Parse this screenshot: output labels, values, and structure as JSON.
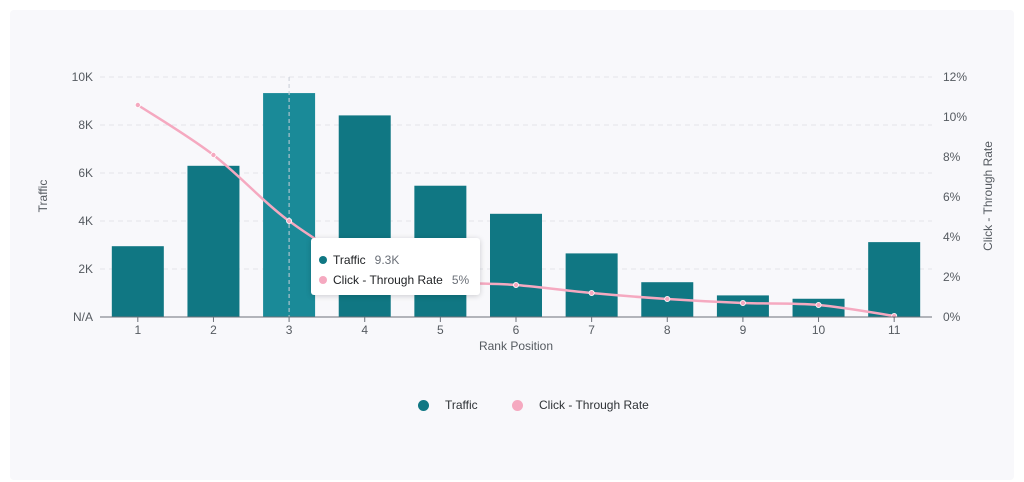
{
  "chart_data": {
    "type": "bar",
    "categories": [
      "1",
      "2",
      "3",
      "4",
      "5",
      "6",
      "7",
      "8",
      "9",
      "10",
      "11"
    ],
    "series": [
      {
        "name": "Traffic",
        "type": "bar",
        "axis": "left",
        "values": [
          2950,
          6300,
          9330,
          8400,
          5470,
          4300,
          2650,
          1450,
          900,
          760,
          3120
        ]
      },
      {
        "name": "Click - Through Rate",
        "type": "line",
        "axis": "right",
        "values": [
          10.6,
          8.1,
          4.8,
          2.6,
          1.8,
          1.6,
          1.2,
          0.9,
          0.7,
          0.6,
          0.05
        ]
      }
    ],
    "xlabel": "Rank Position",
    "ylabel": "Traffic",
    "y2label": "Click - Through Rate",
    "ylim": [
      0,
      10000
    ],
    "y2lim": [
      0,
      12
    ],
    "yticks": [
      "N/A",
      "2K",
      "4K",
      "6K",
      "8K",
      "10K"
    ],
    "y2ticks": [
      "0%",
      "2%",
      "4%",
      "6%",
      "8%",
      "10%",
      "12%"
    ],
    "grid": true,
    "legend": "bottom-center",
    "highlighted_category": "3",
    "tooltip": {
      "rows": [
        {
          "label": "Traffic",
          "value": "9.3K"
        },
        {
          "label": "Click - Through Rate",
          "value": "5%"
        }
      ]
    }
  },
  "colors": {
    "traffic": "#107783",
    "traffic_highlight": "#1a8a98",
    "ctr": "#f5a9c0",
    "grid": "#e3e5ea"
  }
}
